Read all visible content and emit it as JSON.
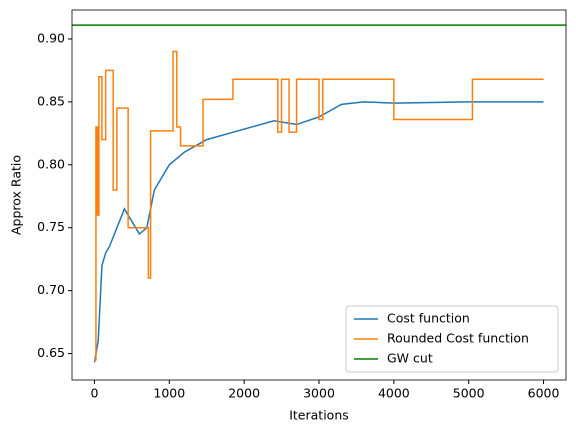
{
  "chart_data": {
    "type": "line",
    "xlabel": "Iterations",
    "ylabel": "Approx Ratio",
    "xlim": [
      -300,
      6300
    ],
    "ylim": [
      0.629,
      0.923
    ],
    "xticks": [
      0,
      1000,
      2000,
      3000,
      4000,
      5000,
      6000
    ],
    "yticks": [
      0.65,
      {
        "value": 0.7,
        "label": "0.70"
      },
      0.75,
      {
        "value": 0.8,
        "label": "0.80"
      },
      0.85,
      {
        "value": 0.9,
        "label": "0.90"
      }
    ],
    "legend": "lower right",
    "series": [
      {
        "name": "Cost function",
        "color": "#1f77b4",
        "x": [
          0,
          50,
          100,
          150,
          200,
          300,
          400,
          500,
          600,
          700,
          800,
          900,
          1000,
          1200,
          1500,
          1800,
          2100,
          2400,
          2700,
          3000,
          3300,
          3600,
          4000,
          5000,
          6000
        ],
        "values": [
          0.643,
          0.66,
          0.72,
          0.73,
          0.735,
          0.75,
          0.765,
          0.755,
          0.745,
          0.75,
          0.78,
          0.79,
          0.8,
          0.81,
          0.82,
          0.825,
          0.83,
          0.835,
          0.832,
          0.838,
          0.848,
          0.85,
          0.849,
          0.85,
          0.85
        ]
      },
      {
        "name": "Rounded Cost function",
        "color": "#ff7f0e",
        "x": [
          0,
          20,
          20,
          40,
          40,
          60,
          60,
          100,
          100,
          150,
          150,
          250,
          250,
          300,
          300,
          450,
          450,
          720,
          720,
          750,
          750,
          1050,
          1050,
          1100,
          1100,
          1150,
          1150,
          1450,
          1450,
          1850,
          1850,
          2450,
          2450,
          2500,
          2500,
          2600,
          2600,
          2700,
          2700,
          3000,
          3000,
          3050,
          3050,
          4000,
          4000,
          5050,
          5050,
          6000
        ],
        "values": [
          0.645,
          0.645,
          0.83,
          0.83,
          0.76,
          0.76,
          0.87,
          0.87,
          0.82,
          0.82,
          0.875,
          0.875,
          0.78,
          0.78,
          0.845,
          0.845,
          0.75,
          0.75,
          0.71,
          0.71,
          0.827,
          0.827,
          0.89,
          0.89,
          0.83,
          0.83,
          0.815,
          0.815,
          0.852,
          0.852,
          0.868,
          0.868,
          0.826,
          0.826,
          0.868,
          0.868,
          0.826,
          0.826,
          0.868,
          0.868,
          0.836,
          0.836,
          0.868,
          0.868,
          0.836,
          0.836,
          0.868,
          0.868
        ]
      }
    ],
    "hlines": [
      {
        "name": "GW cut",
        "color": "#008000",
        "value": 0.911
      }
    ]
  }
}
